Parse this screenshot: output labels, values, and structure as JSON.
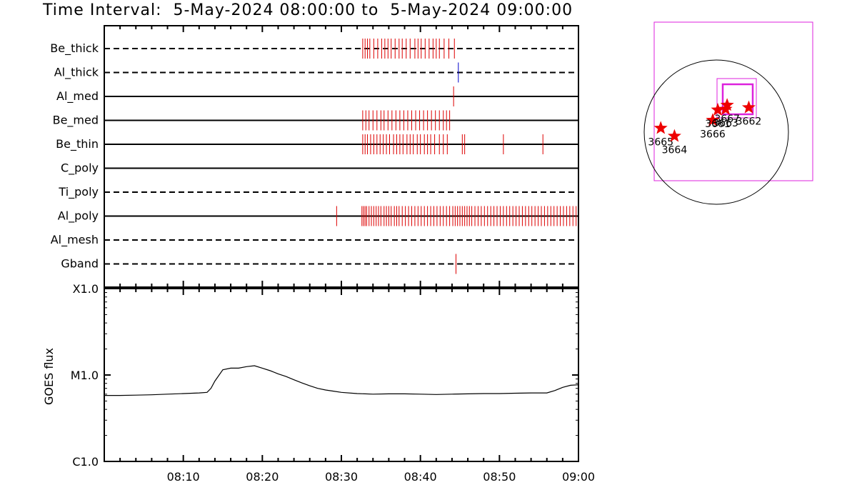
{
  "title": "Time Interval:  5-May-2024 08:00:00 to  5-May-2024 09:00:00",
  "colors": {
    "event_red": "#dd0000",
    "event_blue": "#0000cc",
    "box_magenta": "#dd22dd",
    "star_red": "#ee0000"
  },
  "chart_data": [
    {
      "type": "event-raster",
      "x_range": [
        "08:00",
        "09:00"
      ],
      "channels": [
        {
          "name": "Be_thick",
          "line": "dashed",
          "color": "red",
          "events_min": [
            32.7,
            33.0,
            33.3,
            33.6,
            34.1,
            34.6,
            35.1,
            35.5,
            35.9,
            36.3,
            36.8,
            37.3,
            37.7,
            38.2,
            38.7,
            39.3,
            39.7,
            40.1,
            40.6,
            41.1,
            41.6,
            42.0,
            42.4,
            43.0,
            43.6,
            44.3
          ]
        },
        {
          "name": "Al_thick",
          "line": "dashed",
          "color": "blue",
          "events_min": [
            44.8
          ]
        },
        {
          "name": "Al_med",
          "line": "solid",
          "color": "red",
          "events_min": [
            44.2
          ]
        },
        {
          "name": "Be_med",
          "line": "solid",
          "color": "red",
          "events_min": [
            32.7,
            33.1,
            33.5,
            34.0,
            34.5,
            35.0,
            35.4,
            35.9,
            36.4,
            36.9,
            37.4,
            37.9,
            38.4,
            38.9,
            39.4,
            39.9,
            40.4,
            40.9,
            41.4,
            41.9,
            42.4,
            42.9,
            43.3,
            43.7
          ]
        },
        {
          "name": "Be_thin",
          "line": "solid",
          "color": "red",
          "events_min": [
            32.7,
            33.0,
            33.3,
            33.7,
            34.1,
            34.5,
            34.9,
            35.3,
            35.7,
            36.1,
            36.6,
            37.0,
            37.4,
            37.8,
            38.3,
            38.7,
            39.1,
            39.6,
            40.0,
            40.5,
            40.9,
            41.3,
            41.8,
            42.4,
            42.9,
            43.4,
            45.3,
            45.6,
            50.5,
            55.5
          ]
        },
        {
          "name": "C_poly",
          "line": "solid",
          "color": "red",
          "events_min": []
        },
        {
          "name": "Ti_poly",
          "line": "dashed",
          "color": "red",
          "events_min": []
        },
        {
          "name": "Al_poly",
          "line": "solid",
          "color": "red",
          "events_min": [
            29.4,
            32.6,
            32.8,
            33.0,
            33.2,
            33.5,
            33.8,
            34.1,
            34.4,
            34.7,
            35.0,
            35.4,
            35.7,
            36.0,
            36.3,
            36.7,
            37.0,
            37.3,
            37.7,
            38.1,
            38.5,
            38.9,
            39.3,
            39.7,
            40.1,
            40.5,
            40.9,
            41.3,
            41.7,
            42.1,
            42.5,
            42.9,
            43.3,
            43.7,
            44.1,
            44.4,
            44.7,
            45.0,
            45.3,
            45.6,
            45.9,
            46.2,
            46.5,
            46.9,
            47.3,
            47.7,
            48.1,
            48.5,
            48.9,
            49.3,
            49.7,
            50.1,
            50.5,
            50.9,
            51.3,
            51.7,
            52.1,
            52.5,
            52.9,
            53.3,
            53.7,
            54.1,
            54.5,
            54.9,
            55.3,
            55.7,
            56.1,
            56.5,
            56.9,
            57.3,
            57.7,
            58.1,
            58.5,
            58.9,
            59.3,
            59.7
          ]
        },
        {
          "name": "Al_mesh",
          "line": "dashed",
          "color": "red",
          "events_min": []
        },
        {
          "name": "Gband",
          "line": "dashed",
          "color": "red",
          "events_min": [
            44.5
          ]
        }
      ]
    },
    {
      "type": "line",
      "ylabel": "GOES flux",
      "yscale": "log",
      "y_ticks": [
        "X1.0",
        "M1.0",
        "C1.0"
      ],
      "ylim": [
        "C1.0",
        "X1.0"
      ],
      "x_ticks": [
        "08:10",
        "08:20",
        "08:30",
        "08:40",
        "08:50",
        "09:00"
      ],
      "xlim": [
        "08:00",
        "09:00"
      ],
      "x_min": [
        0,
        2,
        4,
        6,
        8,
        10,
        12,
        13,
        13.5,
        14,
        15,
        16,
        17,
        18,
        19,
        20,
        21,
        22,
        23,
        24,
        25,
        26,
        27,
        28,
        29,
        30,
        32,
        34,
        36,
        38,
        40,
        42,
        44,
        46,
        48,
        50,
        52,
        54,
        56,
        57,
        58,
        59,
        60
      ],
      "y_Wm2": [
        5.8e-06,
        5.8e-06,
        5.85e-06,
        5.9e-06,
        6e-06,
        6.1e-06,
        6.2e-06,
        6.3e-06,
        7e-06,
        8.5e-06,
        1.15e-05,
        1.2e-05,
        1.2e-05,
        1.25e-05,
        1.28e-05,
        1.2e-05,
        1.12e-05,
        1.03e-05,
        9.6e-06,
        8.8e-06,
        8.1e-06,
        7.5e-06,
        7e-06,
        6.7e-06,
        6.5e-06,
        6.3e-06,
        6.1e-06,
        6e-06,
        6.05e-06,
        6.05e-06,
        6e-06,
        5.95e-06,
        6e-06,
        6.05e-06,
        6.1e-06,
        6.1e-06,
        6.15e-06,
        6.2e-06,
        6.2e-06,
        6.6e-06,
        7.2e-06,
        7.6e-06,
        7.7e-06
      ]
    },
    {
      "type": "scatter",
      "description": "active regions on solar disk",
      "regions": [
        {
          "label": "3667",
          "x": 1,
          "y": 0.68
        },
        {
          "label": "3665",
          "x": 0.08,
          "y": 0.1
        },
        {
          "label": "3664",
          "x": 0.27,
          "y": -0.1
        },
        {
          "label": "3666",
          "x": 0.8,
          "y": 0.3
        },
        {
          "label": "3661",
          "x": 0.87,
          "y": 0.56
        },
        {
          "label": "3663",
          "x": 0.98,
          "y": 0.58
        },
        {
          "label": "3662",
          "x": 1.3,
          "y": 0.62
        }
      ]
    }
  ]
}
